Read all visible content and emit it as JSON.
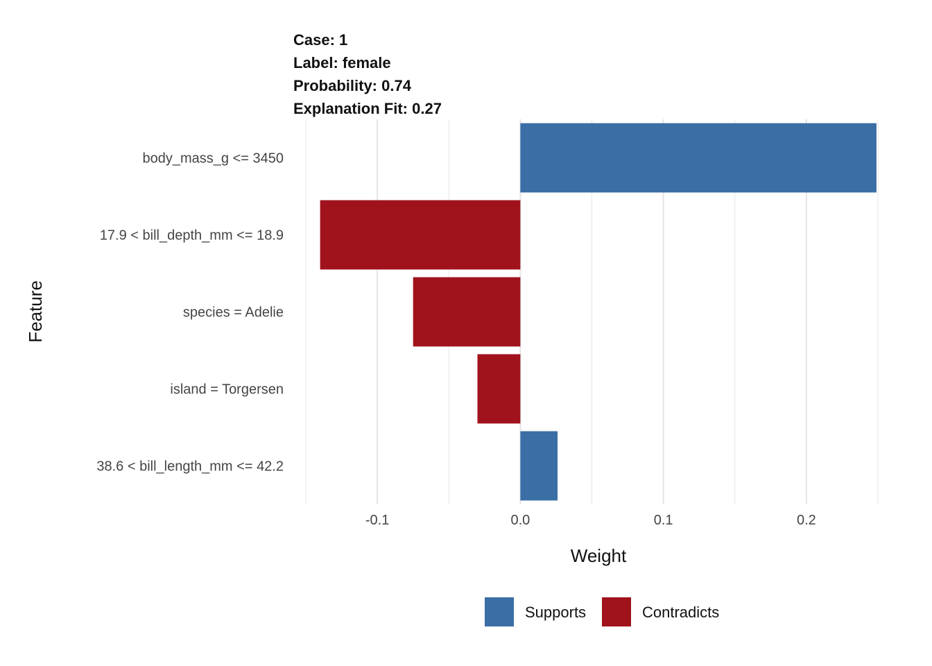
{
  "chart_data": {
    "type": "bar",
    "orientation": "horizontal",
    "title_lines": [
      "Case: 1",
      "Label: female",
      "Probability: 0.74",
      "Explanation Fit: 0.27"
    ],
    "xlabel": "Weight",
    "ylabel": "Feature",
    "categories": [
      "body_mass_g <= 3450",
      "17.9 < bill_depth_mm <= 18.9",
      "species = Adelie",
      "island = Torgersen",
      "38.6 < bill_length_mm <= 42.2"
    ],
    "values": [
      0.249,
      -0.14,
      -0.075,
      -0.03,
      0.026
    ],
    "xlim": [
      -0.15,
      0.25
    ],
    "xticks": [
      -0.1,
      0.0,
      0.1,
      0.2
    ],
    "xtick_labels": [
      "-0.1",
      "0.0",
      "0.1",
      "0.2"
    ],
    "grid": true,
    "legend": {
      "position": "bottom",
      "entries": [
        {
          "label": "Supports",
          "color": "#3A6EA5"
        },
        {
          "label": "Contradicts",
          "color": "#A0131C"
        }
      ]
    },
    "colors": {
      "supports": "#3A6EA5",
      "contradicts": "#A0131C",
      "grid": "#E6E6E6"
    }
  }
}
